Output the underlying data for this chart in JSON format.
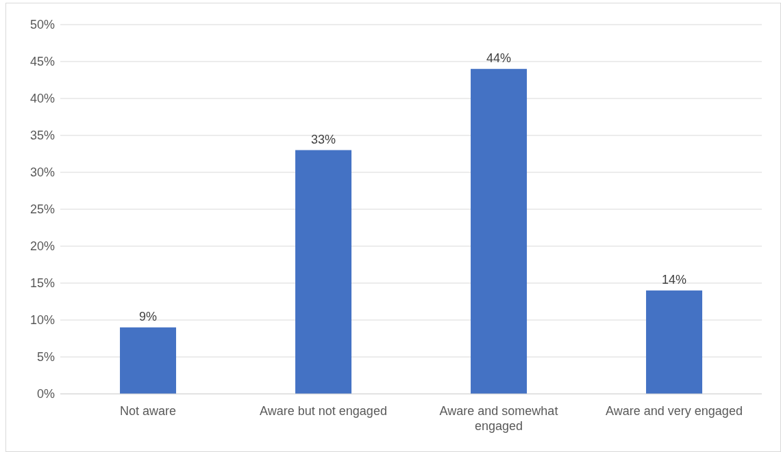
{
  "chart_data": {
    "type": "bar",
    "categories": [
      "Not aware",
      "Aware but not engaged",
      "Aware and somewhat engaged",
      "Aware and very engaged"
    ],
    "values": [
      9,
      33,
      44,
      14
    ],
    "value_labels": [
      "9%",
      "33%",
      "44%",
      "14%"
    ],
    "color": "#4472c4",
    "ylim": [
      0,
      50
    ],
    "yticks": [
      {
        "value": 0,
        "label": "0%"
      },
      {
        "value": 5,
        "label": "5%"
      },
      {
        "value": 10,
        "label": "10%"
      },
      {
        "value": 15,
        "label": "15%"
      },
      {
        "value": 20,
        "label": "20%"
      },
      {
        "value": 25,
        "label": "25%"
      },
      {
        "value": 30,
        "label": "30%"
      },
      {
        "value": 35,
        "label": "35%"
      },
      {
        "value": 40,
        "label": "40%"
      },
      {
        "value": 45,
        "label": "45%"
      },
      {
        "value": 50,
        "label": "50%"
      }
    ],
    "grid": "y"
  }
}
